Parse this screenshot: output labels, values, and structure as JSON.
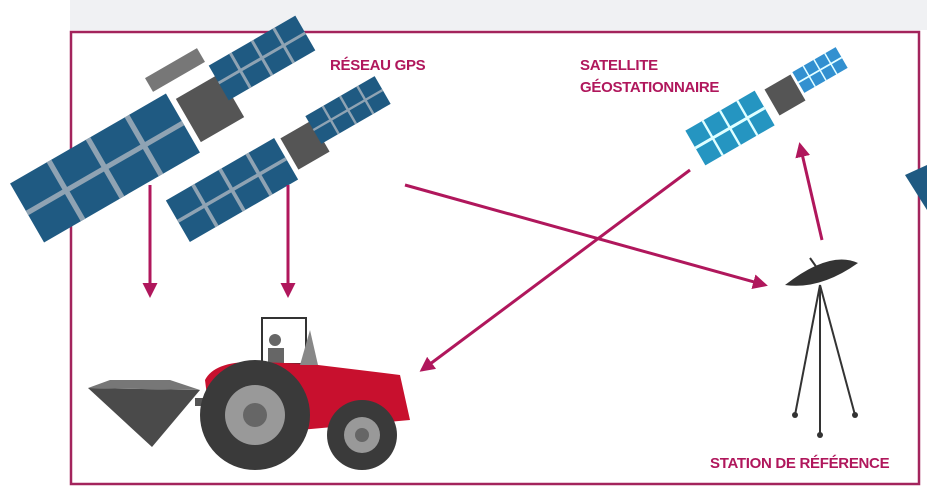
{
  "labels": {
    "gps_network": "RÉSEAU GPS",
    "geostationary_line1": "SATELLITE",
    "geostationary_line2": "GÉOSTATIONNAIRE",
    "reference_station": "STATION DE RÉFÉRENCE"
  }
}
